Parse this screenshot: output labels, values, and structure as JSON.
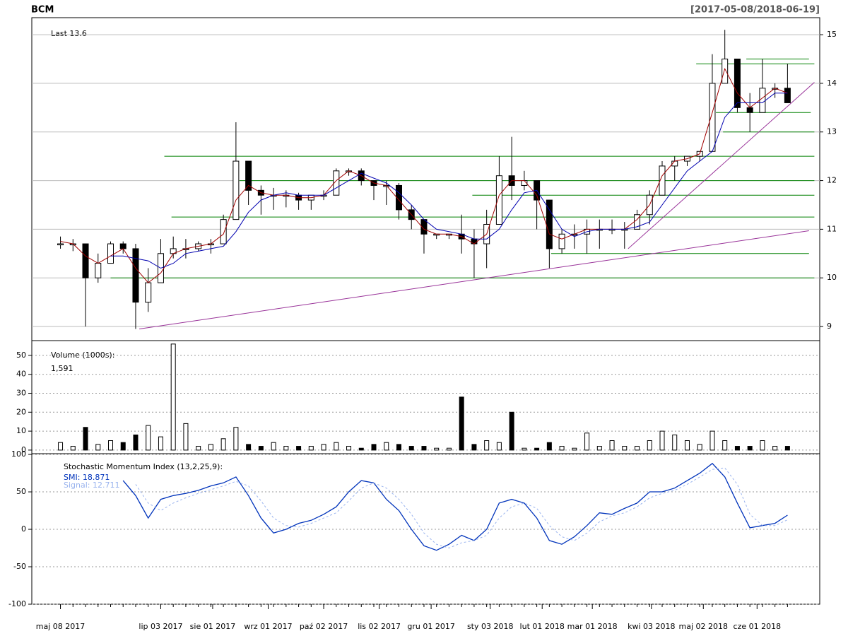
{
  "chart_data": [
    {
      "type": "candlestick",
      "title": "BCM",
      "subtitle": "[2017-05-08/2018-06-19]",
      "annotation": "Last 13.6",
      "x": [
        "2017-05-08",
        "2017-05-15",
        "2017-05-22",
        "2017-05-29",
        "2017-06-05",
        "2017-06-12",
        "2017-06-19",
        "2017-06-26",
        "2017-07-03",
        "2017-07-10",
        "2017-07-17",
        "2017-07-24",
        "2017-07-31",
        "2017-08-07",
        "2017-08-14",
        "2017-08-21",
        "2017-08-28",
        "2017-09-04",
        "2017-09-11",
        "2017-09-18",
        "2017-09-25",
        "2017-10-02",
        "2017-10-09",
        "2017-10-16",
        "2017-10-23",
        "2017-10-30",
        "2017-11-06",
        "2017-11-13",
        "2017-11-20",
        "2017-11-27",
        "2017-12-04",
        "2017-12-11",
        "2017-12-18",
        "2017-12-25",
        "2018-01-01",
        "2018-01-08",
        "2018-01-15",
        "2018-01-22",
        "2018-01-29",
        "2018-02-05",
        "2018-02-12",
        "2018-02-19",
        "2018-02-26",
        "2018-03-05",
        "2018-03-12",
        "2018-03-19",
        "2018-03-26",
        "2018-04-02",
        "2018-04-09",
        "2018-04-16",
        "2018-04-23",
        "2018-04-30",
        "2018-05-07",
        "2018-05-14",
        "2018-05-21",
        "2018-05-28",
        "2018-06-04",
        "2018-06-11",
        "2018-06-18"
      ],
      "high": [
        10.85,
        10.8,
        10.6,
        10.5,
        10.75,
        10.75,
        10.7,
        10.2,
        10.8,
        10.85,
        10.8,
        10.75,
        10.8,
        11.3,
        13.2,
        12.1,
        11.9,
        11.85,
        11.8,
        11.75,
        11.7,
        11.8,
        12.25,
        12.25,
        12.25,
        12.0,
        12.0,
        11.95,
        11.5,
        11.2,
        10.9,
        10.9,
        11.3,
        11.0,
        11.4,
        12.5,
        12.9,
        12.2,
        12.0,
        11.5,
        11.0,
        11.1,
        11.2,
        11.2,
        11.2,
        11.15,
        11.4,
        11.8,
        12.4,
        12.5,
        12.5,
        12.6,
        14.6,
        15.1,
        14.0,
        13.8,
        14.5,
        14.0,
        14.4
      ],
      "low": [
        10.6,
        10.55,
        9.0,
        9.9,
        10.3,
        10.5,
        8.95,
        9.3,
        9.9,
        10.4,
        10.4,
        10.55,
        10.5,
        10.8,
        11.5,
        11.5,
        11.3,
        11.4,
        11.45,
        11.4,
        11.4,
        11.6,
        11.7,
        12.1,
        11.9,
        11.6,
        11.5,
        11.2,
        11.0,
        10.5,
        10.8,
        10.8,
        10.5,
        10.0,
        10.2,
        11.2,
        11.6,
        11.8,
        11.0,
        10.2,
        10.5,
        10.6,
        10.5,
        10.6,
        10.9,
        10.6,
        11.0,
        11.1,
        11.7,
        12.0,
        12.3,
        12.4,
        12.6,
        14.2,
        13.4,
        13.0,
        13.5,
        13.7,
        13.6
      ],
      "close": [
        10.7,
        10.7,
        10.0,
        10.3,
        10.7,
        10.6,
        9.5,
        9.9,
        10.5,
        10.6,
        10.6,
        10.7,
        10.7,
        11.2,
        12.4,
        11.8,
        11.7,
        11.7,
        11.7,
        11.6,
        11.7,
        11.7,
        12.2,
        12.2,
        12.0,
        11.9,
        11.9,
        11.4,
        11.2,
        10.9,
        10.9,
        10.9,
        10.8,
        10.7,
        11.1,
        12.1,
        11.9,
        12.0,
        11.6,
        10.6,
        10.9,
        10.9,
        11.0,
        11.0,
        11.0,
        11.0,
        11.3,
        11.7,
        12.3,
        12.4,
        12.5,
        12.6,
        14.0,
        14.5,
        13.5,
        13.4,
        13.9,
        13.9,
        13.6
      ],
      "series": [
        {
          "color": "#a00000",
          "values": [
            10.75,
            10.7,
            10.45,
            10.3,
            10.45,
            10.6,
            10.2,
            9.9,
            10.1,
            10.5,
            10.6,
            10.65,
            10.7,
            10.9,
            11.6,
            11.9,
            11.75,
            11.7,
            11.7,
            11.65,
            11.65,
            11.7,
            12.0,
            12.2,
            12.1,
            11.95,
            11.9,
            11.6,
            11.3,
            11.0,
            10.9,
            10.9,
            10.85,
            10.7,
            10.9,
            11.7,
            12.0,
            12.0,
            11.7,
            10.9,
            10.8,
            10.9,
            11.0,
            11.0,
            11.0,
            11.0,
            11.2,
            11.5,
            12.1,
            12.4,
            12.45,
            12.55,
            13.4,
            14.3,
            13.8,
            13.5,
            13.7,
            13.9,
            13.8
          ]
        },
        {
          "color": "#0000b0",
          "values": [
            null,
            null,
            null,
            null,
            10.45,
            10.45,
            10.4,
            10.35,
            10.2,
            10.3,
            10.5,
            10.55,
            10.6,
            10.65,
            10.95,
            11.35,
            11.6,
            11.7,
            11.75,
            11.7,
            11.7,
            11.7,
            11.85,
            12.0,
            12.15,
            12.05,
            11.95,
            11.75,
            11.5,
            11.2,
            11.0,
            10.95,
            10.9,
            10.8,
            10.8,
            11.0,
            11.4,
            11.75,
            11.8,
            11.4,
            11.0,
            10.85,
            10.95,
            11.0,
            11.0,
            11.0,
            11.05,
            11.15,
            11.5,
            11.85,
            12.2,
            12.4,
            12.6,
            13.3,
            13.6,
            13.6,
            13.6,
            13.8,
            13.8
          ]
        }
      ],
      "levels": [
        {
          "value": 12.5,
          "from": "2017-07-05",
          "to": "2018-07-03"
        },
        {
          "value": 12.0,
          "from": "2017-08-16",
          "to": "2018-07-03"
        },
        {
          "value": 11.7,
          "from": "2017-12-24",
          "to": "2018-07-03"
        },
        {
          "value": 11.25,
          "from": "2017-07-09",
          "to": "2018-07-03"
        },
        {
          "value": 10.5,
          "from": "2018-02-06",
          "to": "2018-06-30"
        },
        {
          "value": 10.0,
          "from": "2017-06-05",
          "to": "2018-07-03"
        },
        {
          "value": 13.0,
          "from": "2018-05-13",
          "to": "2018-07-03"
        },
        {
          "value": 13.4,
          "from": "2018-05-09",
          "to": "2018-07-01"
        },
        {
          "value": 14.4,
          "from": "2018-04-28",
          "to": "2018-07-03"
        },
        {
          "value": 14.5,
          "from": "2018-05-26",
          "to": "2018-06-30"
        }
      ],
      "level_color": "#008000",
      "trendlines": [
        {
          "x": [
            "2017-06-21",
            "2018-06-30"
          ],
          "y": [
            8.95,
            10.97
          ]
        },
        {
          "x": [
            "2018-03-21",
            "2018-07-03"
          ],
          "y": [
            10.6,
            14.02
          ]
        }
      ],
      "trend_color": "#993399",
      "xlim": [
        "2017-04-22",
        "2018-07-06"
      ],
      "ylim": [
        8.71,
        15.35
      ],
      "yticks": [
        9,
        10,
        11,
        12,
        13,
        14,
        15
      ],
      "grid": "solid"
    },
    {
      "type": "bar",
      "title": "Volume (1000s):",
      "annotation": "1,591",
      "x": [
        "2017-05-08",
        "2017-05-15",
        "2017-05-22",
        "2017-05-29",
        "2017-06-05",
        "2017-06-12",
        "2017-06-19",
        "2017-06-26",
        "2017-07-03",
        "2017-07-10",
        "2017-07-17",
        "2017-07-24",
        "2017-07-31",
        "2017-08-07",
        "2017-08-14",
        "2017-08-21",
        "2017-08-28",
        "2017-09-04",
        "2017-09-11",
        "2017-09-18",
        "2017-09-25",
        "2017-10-02",
        "2017-10-09",
        "2017-10-16",
        "2017-10-23",
        "2017-10-30",
        "2017-11-06",
        "2017-11-13",
        "2017-11-20",
        "2017-11-27",
        "2017-12-04",
        "2017-12-11",
        "2017-12-18",
        "2017-12-25",
        "2018-01-01",
        "2018-01-08",
        "2018-01-15",
        "2018-01-22",
        "2018-01-29",
        "2018-02-05",
        "2018-02-12",
        "2018-02-19",
        "2018-02-26",
        "2018-03-05",
        "2018-03-12",
        "2018-03-19",
        "2018-03-26",
        "2018-04-02",
        "2018-04-09",
        "2018-04-16",
        "2018-04-23",
        "2018-04-30",
        "2018-05-07",
        "2018-05-14",
        "2018-05-21",
        "2018-05-28",
        "2018-06-04",
        "2018-06-11",
        "2018-06-18"
      ],
      "values": [
        4,
        2,
        12,
        3,
        5,
        4,
        8,
        13,
        7,
        56,
        14,
        2,
        3,
        6,
        12,
        3,
        2,
        4,
        2,
        2,
        2,
        3,
        4,
        2,
        1,
        3,
        4,
        3,
        2,
        2,
        1,
        1,
        28,
        3,
        5,
        4,
        20,
        1,
        1,
        4,
        2,
        1,
        9,
        2,
        5,
        2,
        2,
        5,
        10,
        8,
        5,
        3,
        10,
        5,
        2,
        2,
        5,
        2,
        2
      ],
      "xlim": [
        "2017-04-22",
        "2018-07-06"
      ],
      "ylim": [
        -1.9,
        57.8
      ],
      "yticks": [
        0,
        10,
        20,
        30,
        40,
        50
      ],
      "grid": "dotted"
    },
    {
      "type": "line",
      "title": "Stochastic Momentum Index (13,2,25,9):",
      "x": [
        "2017-05-08",
        "2017-05-15",
        "2017-05-22",
        "2017-05-29",
        "2017-06-05",
        "2017-06-12",
        "2017-06-19",
        "2017-06-26",
        "2017-07-03",
        "2017-07-10",
        "2017-07-17",
        "2017-07-24",
        "2017-07-31",
        "2017-08-07",
        "2017-08-14",
        "2017-08-21",
        "2017-08-28",
        "2017-09-04",
        "2017-09-11",
        "2017-09-18",
        "2017-09-25",
        "2017-10-02",
        "2017-10-09",
        "2017-10-16",
        "2017-10-23",
        "2017-10-30",
        "2017-11-06",
        "2017-11-13",
        "2017-11-20",
        "2017-11-27",
        "2017-12-04",
        "2017-12-11",
        "2017-12-18",
        "2017-12-25",
        "2018-01-01",
        "2018-01-08",
        "2018-01-15",
        "2018-01-22",
        "2018-01-29",
        "2018-02-05",
        "2018-02-12",
        "2018-02-19",
        "2018-02-26",
        "2018-03-05",
        "2018-03-12",
        "2018-03-19",
        "2018-03-26",
        "2018-04-02",
        "2018-04-09",
        "2018-04-16",
        "2018-04-23",
        "2018-04-30",
        "2018-05-07",
        "2018-05-14",
        "2018-05-21",
        "2018-05-28",
        "2018-06-04",
        "2018-06-11",
        "2018-06-18"
      ],
      "series": [
        {
          "name": "SMI: 18.871",
          "color": "#0033bb",
          "values": [
            null,
            null,
            null,
            null,
            null,
            65,
            45,
            15,
            40,
            45,
            48,
            52,
            58,
            62,
            70,
            45,
            15,
            -5,
            0,
            8,
            12,
            20,
            30,
            50,
            65,
            62,
            40,
            25,
            0,
            -22,
            -28,
            -20,
            -8,
            -15,
            0,
            35,
            40,
            35,
            15,
            -15,
            -20,
            -10,
            5,
            22,
            20,
            28,
            35,
            50,
            50,
            55,
            65,
            75,
            88,
            70,
            35,
            2,
            5,
            8,
            18.871
          ]
        },
        {
          "name": "Signal: 12.711",
          "color": "#99b3ee",
          "values": [
            null,
            null,
            null,
            null,
            null,
            null,
            60,
            35,
            25,
            35,
            42,
            48,
            53,
            58,
            64,
            58,
            38,
            15,
            5,
            3,
            8,
            15,
            22,
            38,
            55,
            62,
            55,
            40,
            20,
            -5,
            -20,
            -25,
            -18,
            -15,
            -8,
            15,
            30,
            35,
            28,
            5,
            -10,
            -15,
            -5,
            10,
            18,
            22,
            30,
            42,
            48,
            52,
            60,
            70,
            80,
            82,
            60,
            20,
            5,
            5,
            12.711
          ]
        }
      ],
      "xlim": [
        "2017-04-22",
        "2018-07-06"
      ],
      "ylim": [
        -100,
        101
      ],
      "yticks": [
        -100,
        -50,
        0,
        50,
        100
      ],
      "grid": "dotted",
      "xticks": [
        {
          "value": "2017-05-08",
          "label": "maj 08 2017"
        },
        {
          "value": "2017-07-03",
          "label": "lip 03 2017"
        },
        {
          "value": "2017-08-01",
          "label": "sie 01 2017"
        },
        {
          "value": "2017-09-01",
          "label": "wrz 01 2017"
        },
        {
          "value": "2017-10-02",
          "label": "paź 02 2017"
        },
        {
          "value": "2017-11-02",
          "label": "lis 02 2017"
        },
        {
          "value": "2017-12-01",
          "label": "gru 01 2017"
        },
        {
          "value": "2018-01-03",
          "label": "sty 03 2018"
        },
        {
          "value": "2018-02-01",
          "label": "lut 01 2018"
        },
        {
          "value": "2018-03-01",
          "label": "mar 01 2018"
        },
        {
          "value": "2018-04-03",
          "label": "kwi 03 2018"
        },
        {
          "value": "2018-05-02",
          "label": "maj 02 2018"
        },
        {
          "value": "2018-06-01",
          "label": "cze 01 2018"
        }
      ]
    }
  ]
}
